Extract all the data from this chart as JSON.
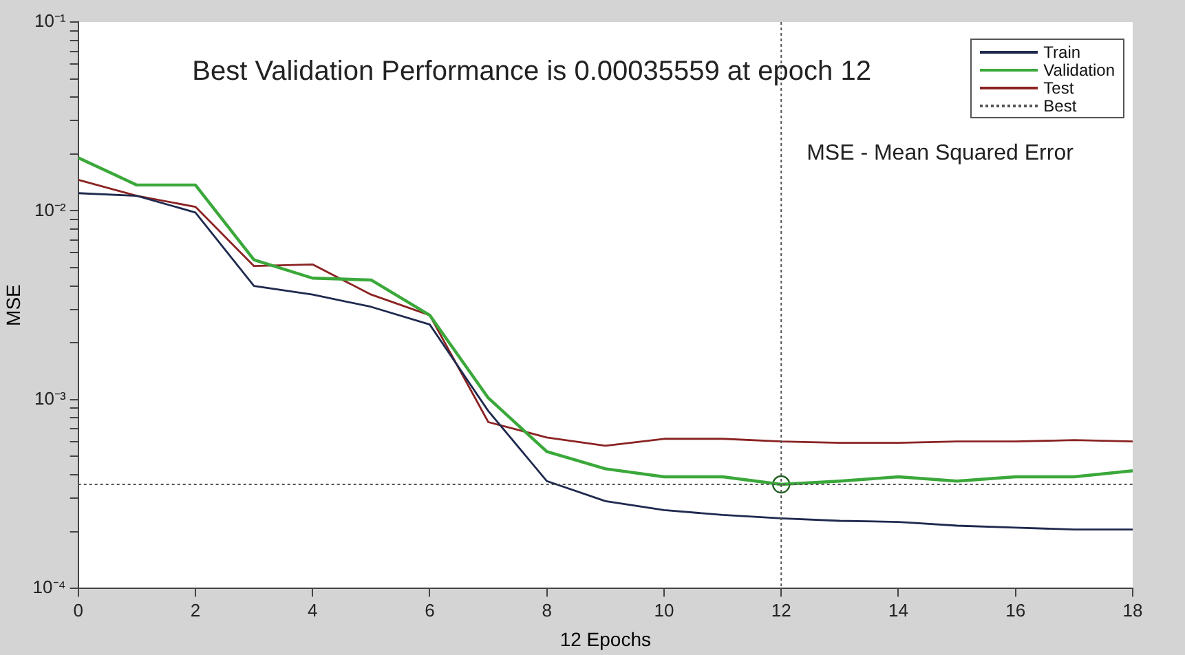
{
  "chart_data": {
    "type": "line",
    "title": "Best Validation Performance is 0.00035559 at epoch 12",
    "xlabel": "12 Epochs",
    "ylabel": "MSE",
    "annotations": [
      "MSE - Mean Squared Error"
    ],
    "x": [
      0,
      1,
      2,
      3,
      4,
      5,
      6,
      7,
      8,
      9,
      10,
      11,
      12,
      13,
      14,
      15,
      16,
      17,
      18
    ],
    "series": [
      {
        "name": "Train",
        "color": "#1f2a4f",
        "values": [
          0.0124,
          0.012,
          0.0098,
          0.004,
          0.0036,
          0.0031,
          0.0025,
          0.00087,
          0.00037,
          0.00029,
          0.00026,
          0.000245,
          0.000235,
          0.000228,
          0.000225,
          0.000215,
          0.00021,
          0.000205,
          0.000205
        ]
      },
      {
        "name": "Validation",
        "color": "#3aa83a",
        "values": [
          0.0191,
          0.0137,
          0.0137,
          0.0055,
          0.0044,
          0.0043,
          0.0028,
          0.00102,
          0.00053,
          0.00043,
          0.00039,
          0.00039,
          0.00035559,
          0.00037,
          0.00039,
          0.00037,
          0.00039,
          0.00039,
          0.00042
        ]
      },
      {
        "name": "Test",
        "color": "#8b2323",
        "values": [
          0.0146,
          0.012,
          0.0105,
          0.0051,
          0.0052,
          0.0036,
          0.0028,
          0.00076,
          0.00063,
          0.00057,
          0.00062,
          0.00062,
          0.0006,
          0.00059,
          0.00059,
          0.0006,
          0.0006,
          0.00061,
          0.0006
        ]
      },
      {
        "type": "scatter",
        "marker": "circle",
        "color": "#1f5f1f",
        "x": [
          12
        ],
        "values": [
          0.00035559
        ]
      }
    ],
    "ref_lines": [
      {
        "axis": "x",
        "value": 12,
        "line_style": "dotted",
        "color": "#555555"
      },
      {
        "axis": "y",
        "value": 0.00035559,
        "label": "Best",
        "line_style": "dotted",
        "color": "#555555"
      }
    ],
    "log": "y",
    "xlim": [
      0,
      18
    ],
    "xticks": [
      0,
      2,
      4,
      6,
      8,
      10,
      12,
      14,
      16,
      18
    ],
    "ylim": [
      0.0001,
      0.1
    ],
    "yticks": [
      {
        "value": 0.0001,
        "label": "10⁻⁴"
      },
      {
        "value": 0.0002,
        "label": null
      },
      {
        "value": 0.0003,
        "label": null
      },
      {
        "value": 0.0004,
        "label": null
      },
      {
        "value": 0.0005,
        "label": null
      },
      {
        "value": 0.0006,
        "label": null
      },
      {
        "value": 0.0007,
        "label": null
      },
      {
        "value": 0.0008,
        "label": null
      },
      {
        "value": 0.0009,
        "label": null
      },
      {
        "value": 0.001,
        "label": "10⁻³"
      },
      {
        "value": 0.002,
        "label": null
      },
      {
        "value": 0.003,
        "label": null
      },
      {
        "value": 0.004,
        "label": null
      },
      {
        "value": 0.005,
        "label": null
      },
      {
        "value": 0.006,
        "label": null
      },
      {
        "value": 0.007,
        "label": null
      },
      {
        "value": 0.008,
        "label": null
      },
      {
        "value": 0.009,
        "label": null
      },
      {
        "value": 0.01,
        "label": "10⁻²"
      },
      {
        "value": 0.02,
        "label": null
      },
      {
        "value": 0.03,
        "label": null
      },
      {
        "value": 0.04,
        "label": null
      },
      {
        "value": 0.05,
        "label": null
      },
      {
        "value": 0.06,
        "label": null
      },
      {
        "value": 0.07,
        "label": null
      },
      {
        "value": 0.08,
        "label": null
      },
      {
        "value": 0.09,
        "label": null
      },
      {
        "value": 0.1,
        "label": "10⁻¹"
      }
    ],
    "grid": false,
    "legend": "top right",
    "marker": "none",
    "line_style": "solid"
  }
}
